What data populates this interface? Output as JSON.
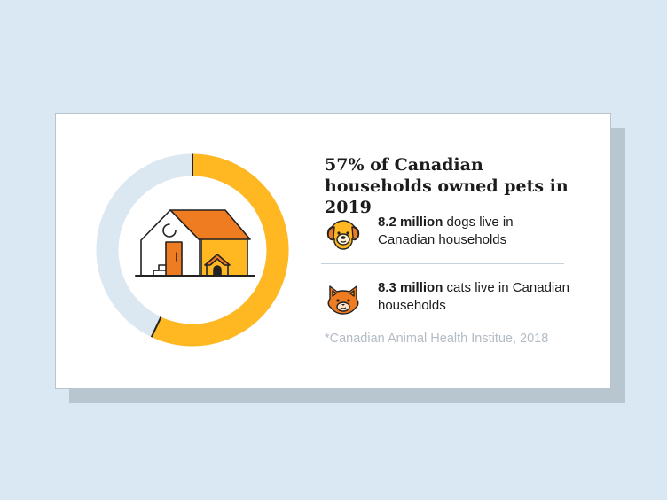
{
  "headline": "57% of Canadian households owned pets in 2019",
  "chart_data": {
    "type": "pie",
    "style": "donut",
    "values": [
      57,
      43
    ],
    "colors": [
      "#ffb822",
      "#dbe7f1"
    ]
  },
  "stats": [
    {
      "bold": "8.2 million",
      "text": " dogs live in Canadian households",
      "icon": "dog-face-icon"
    },
    {
      "bold": "8.3 million",
      "text": " cats live in Canadian households",
      "icon": "cat-face-icon"
    }
  ],
  "source": "*Canadian Animal Health Institue, 2018",
  "colors": {
    "accent": "#ffb822",
    "orange": "#f07c22",
    "track": "#dbe7f1",
    "background": "#d9e8f2"
  }
}
